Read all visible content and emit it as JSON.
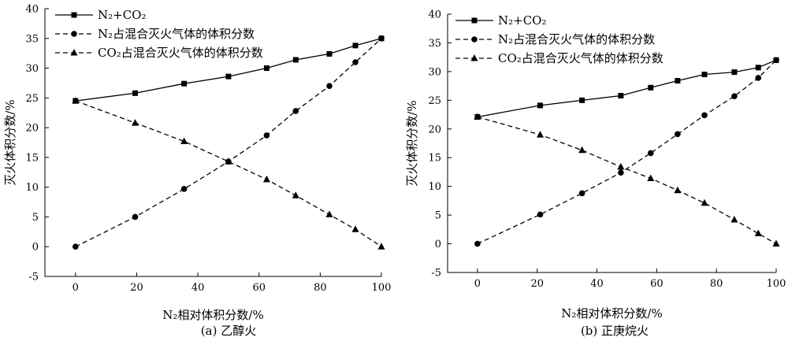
{
  "chart_data": [
    {
      "type": "line",
      "caption": "(a) 乙醇火",
      "xlabel": "N₂相对体积分数/%",
      "ylabel": "灭火体积分数/%",
      "xlim": [
        -10,
        100
      ],
      "ylim": [
        -5,
        40
      ],
      "xticks": [
        0,
        20,
        40,
        60,
        80,
        100
      ],
      "yticks": [
        -5,
        0,
        5,
        10,
        15,
        20,
        25,
        30,
        35,
        40
      ],
      "legend_position": "top-left",
      "series": [
        {
          "name": "N₂+CO₂",
          "marker": "square",
          "dash": "solid",
          "x": [
            0,
            19.5,
            35.5,
            50,
            62.5,
            72,
            83,
            91.5,
            100
          ],
          "y": [
            24.5,
            25.8,
            27.4,
            28.6,
            30.0,
            31.4,
            32.4,
            33.8,
            35.0
          ]
        },
        {
          "name": "N₂占混合灭火气体的体积分数",
          "marker": "circle",
          "dash": "dashed",
          "x": [
            0,
            19.5,
            35.5,
            50,
            62.5,
            72,
            83,
            91.5,
            100
          ],
          "y": [
            0,
            5.0,
            9.7,
            14.3,
            18.7,
            22.8,
            27.0,
            31.0,
            35.0
          ]
        },
        {
          "name": "CO₂占混合灭火气体的体积分数",
          "marker": "triangle",
          "dash": "dashed",
          "x": [
            0,
            19.5,
            35.5,
            50,
            62.5,
            72,
            83,
            91.5,
            100
          ],
          "y": [
            24.5,
            20.8,
            17.7,
            14.3,
            11.3,
            8.6,
            5.4,
            2.9,
            0
          ]
        }
      ]
    },
    {
      "type": "line",
      "caption": "(b) 正庚烷火",
      "xlabel": "N₂相对体积分数/%",
      "ylabel": "灭火体积分数/%",
      "xlim": [
        -10,
        100
      ],
      "ylim": [
        -5,
        40
      ],
      "xticks": [
        0,
        20,
        40,
        60,
        80,
        100
      ],
      "yticks": [
        -5,
        0,
        5,
        10,
        15,
        20,
        25,
        30,
        35,
        40
      ],
      "legend_position": "top-left",
      "series": [
        {
          "name": "N₂+CO₂",
          "marker": "square",
          "dash": "solid",
          "x": [
            0,
            21,
            35,
            48,
            58,
            67,
            76,
            86,
            94,
            100
          ],
          "y": [
            22.1,
            24.1,
            25.0,
            25.8,
            27.2,
            28.4,
            29.5,
            29.9,
            30.7,
            32.0
          ]
        },
        {
          "name": "N₂占混合灭火气体的体积分数",
          "marker": "circle",
          "dash": "dashed",
          "x": [
            0,
            21,
            35,
            48,
            58,
            67,
            76,
            86,
            94,
            100
          ],
          "y": [
            0,
            5.1,
            8.8,
            12.4,
            15.8,
            19.1,
            22.4,
            25.7,
            28.9,
            32.0
          ]
        },
        {
          "name": "CO₂占混合灭火气体的体积分数",
          "marker": "triangle",
          "dash": "dashed",
          "x": [
            0,
            21,
            35,
            48,
            58,
            67,
            76,
            86,
            94,
            100
          ],
          "y": [
            22.1,
            19.0,
            16.3,
            13.4,
            11.4,
            9.3,
            7.1,
            4.2,
            1.8,
            0
          ]
        }
      ]
    }
  ]
}
